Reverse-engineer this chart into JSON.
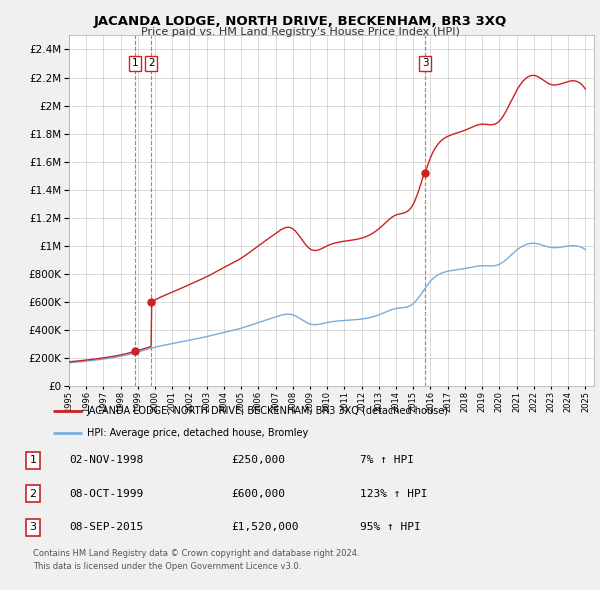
{
  "title": "JACANDA LODGE, NORTH DRIVE, BECKENHAM, BR3 3XQ",
  "subtitle": "Price paid vs. HM Land Registry's House Price Index (HPI)",
  "legend_line1": "JACANDA LODGE, NORTH DRIVE, BECKENHAM, BR3 3XQ (detached house)",
  "legend_line2": "HPI: Average price, detached house, Bromley",
  "footnote1": "Contains HM Land Registry data © Crown copyright and database right 2024.",
  "footnote2": "This data is licensed under the Open Government Licence v3.0.",
  "transactions": [
    {
      "num": 1,
      "date": "02-NOV-1998",
      "price": "£250,000",
      "hpi": "7% ↑ HPI",
      "year": 1998.84
    },
    {
      "num": 2,
      "date": "08-OCT-1999",
      "price": "£600,000",
      "hpi": "123% ↑ HPI",
      "year": 1999.77
    },
    {
      "num": 3,
      "date": "08-SEP-2015",
      "price": "£1,520,000",
      "hpi": "95% ↑ HPI",
      "year": 2015.69
    }
  ],
  "transaction_values": [
    250000,
    600000,
    1520000
  ],
  "hpi_color": "#7aabdc",
  "property_color": "#cc2222",
  "background_color": "#f0f0f0",
  "plot_bg_color": "#ffffff",
  "grid_color": "#cccccc",
  "vline_color": "#dd4444",
  "xmin": 1995.0,
  "xmax": 2025.5,
  "ymin": 0,
  "ymax": 2500000,
  "hpi_anchors_x": [
    1995,
    1996,
    1997,
    1998,
    1999,
    2000,
    2001,
    2002,
    2003,
    2004,
    2005,
    2006,
    2007,
    2008,
    2009,
    2010,
    2011,
    2012,
    2013,
    2014,
    2015,
    2016,
    2017,
    2018,
    2019,
    2020,
    2021,
    2022,
    2023,
    2024,
    2025
  ],
  "hpi_anchors_y": [
    168000,
    180000,
    195000,
    215000,
    245000,
    280000,
    305000,
    330000,
    355000,
    385000,
    415000,
    455000,
    495000,
    510000,
    445000,
    455000,
    470000,
    480000,
    510000,
    555000,
    590000,
    750000,
    820000,
    840000,
    860000,
    870000,
    970000,
    1020000,
    990000,
    1000000,
    975000
  ]
}
